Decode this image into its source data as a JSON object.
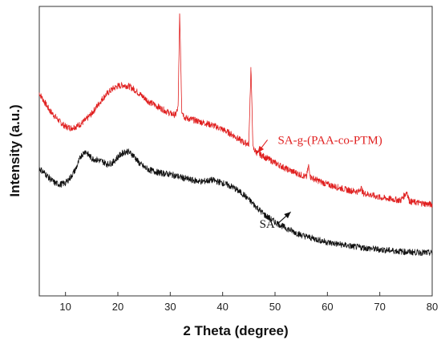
{
  "chart_data": {
    "type": "line",
    "xlabel": "2 Theta (degree)",
    "ylabel": "Intensity (a.u.)",
    "xlim": [
      5,
      80
    ],
    "ylim": [
      0,
      100
    ],
    "x_ticks": [
      10,
      20,
      30,
      40,
      50,
      60,
      70,
      80
    ],
    "y_ticks_shown": false,
    "grid": false,
    "legend": "none",
    "series": [
      {
        "name": "SA-g-(PAA-co-PTM)",
        "color": "#e02020",
        "x": [
          5,
          7,
          9,
          10,
          11,
          12,
          13,
          14,
          15,
          16,
          17,
          18,
          19,
          20,
          21,
          22,
          23,
          24,
          25,
          26,
          27,
          28,
          29,
          30,
          31,
          31.5,
          31.8,
          32.2,
          32.8,
          34,
          36,
          38,
          40,
          42,
          44,
          45,
          45.4,
          45.8,
          46.5,
          48,
          50,
          52,
          54,
          56,
          56.4,
          56.8,
          58,
          60,
          62,
          64,
          66,
          66.4,
          66.8,
          68,
          70,
          72,
          74,
          75.2,
          75.6,
          76,
          78,
          80
        ],
        "y": [
          70,
          64,
          60,
          58.5,
          58,
          58.5,
          59.5,
          61,
          63,
          65.5,
          68,
          70,
          71.5,
          72.5,
          72.8,
          72.5,
          71.5,
          70,
          68.5,
          67,
          66,
          65,
          64,
          63,
          62.5,
          65,
          98,
          64,
          61.5,
          61,
          60,
          59,
          57.5,
          55.5,
          53,
          52.5,
          79,
          51,
          49.5,
          48,
          46,
          44,
          42.5,
          41,
          45,
          41,
          40,
          38.5,
          37.5,
          36.5,
          36,
          37.5,
          35.5,
          35,
          34,
          33.5,
          33,
          36,
          33,
          32.5,
          32,
          31.5
        ]
      },
      {
        "name": "SA",
        "color": "#111111",
        "x": [
          5,
          6,
          7,
          8,
          9,
          10,
          11,
          12,
          13,
          13.8,
          14.5,
          15,
          16,
          17,
          18,
          19,
          20,
          21,
          21.8,
          23,
          24,
          25,
          26,
          27,
          28,
          30,
          32,
          34,
          36,
          38,
          40,
          42,
          44,
          46,
          48,
          50,
          52,
          55,
          58,
          60,
          65,
          70,
          75,
          80
        ],
        "y": [
          44,
          42.5,
          40.5,
          39,
          38.5,
          39,
          41,
          44,
          48.5,
          50,
          48.5,
          47.5,
          47,
          46.5,
          45.5,
          46,
          48,
          49.5,
          50,
          48.5,
          46,
          44.5,
          43.5,
          43,
          42.5,
          42,
          41,
          40,
          39.5,
          40,
          39,
          37.5,
          35,
          31.5,
          28,
          25.5,
          23.5,
          21,
          19.5,
          18.5,
          17,
          16,
          15.2,
          14.8
        ]
      }
    ],
    "annotations": [
      {
        "text": "SA-g-(PAA-co-PTM)",
        "color": "#e02020",
        "at_x": 60.5,
        "at_y": 52.5,
        "arrow_to_x": 46.7,
        "arrow_to_y": 49.5
      },
      {
        "text": "SA",
        "color": "#111111",
        "at_x": 48.5,
        "at_y": 23.5,
        "arrow_to_x": 53,
        "arrow_to_y": 29
      }
    ]
  }
}
